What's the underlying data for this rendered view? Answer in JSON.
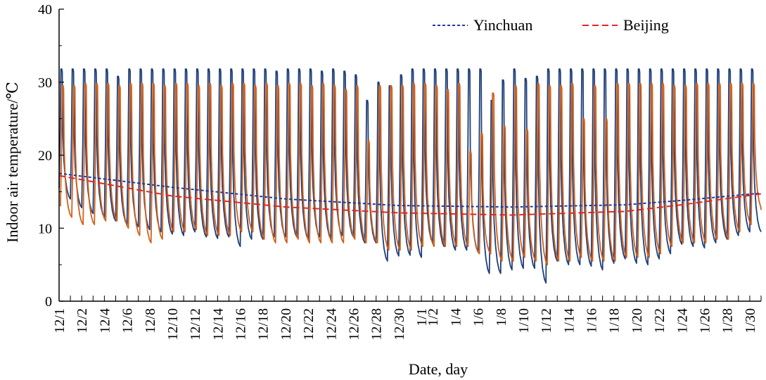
{
  "chart_data": {
    "type": "line",
    "xlabel": "Date, day",
    "ylabel": "Indoor air temperature/℃",
    "ylim": [
      0,
      40
    ],
    "yticks": [
      "0",
      "10",
      "20",
      "30",
      "40"
    ],
    "x_range_days": [
      0,
      62
    ],
    "x_tick_labels": [
      "12/1",
      "12/2",
      "12/4",
      "12/6",
      "12/8",
      "12/10",
      "12/12",
      "12/14",
      "12/16",
      "12/18",
      "12/20",
      "12/22",
      "12/24",
      "12/26",
      "12/28",
      "12/30",
      "1/1",
      "1/2",
      "1/4",
      "1/6",
      "1/8",
      "1/10",
      "1/12",
      "1/14",
      "1/16",
      "1/18",
      "1/20",
      "1/22",
      "1/24",
      "1/26",
      "1/28",
      "1/30"
    ],
    "x_tick_positions": [
      0,
      2,
      4,
      6,
      8,
      10,
      12,
      14,
      16,
      18,
      20,
      22,
      24,
      26,
      28,
      30,
      32,
      33,
      35,
      37,
      39,
      41,
      43,
      45,
      47,
      49,
      51,
      53,
      55,
      57,
      59,
      61
    ],
    "grid": false,
    "legend_position": "top-right",
    "colors": {
      "yinchuan_measured": "#1f3f7a",
      "beijing_measured": "#d2611c",
      "yinchuan_trend": "#1f3a9e",
      "beijing_trend": "#e8231f"
    },
    "series": [
      {
        "name": "Yinchuan",
        "role": "trend",
        "style": "dashed",
        "x": [
          0,
          10,
          20,
          30,
          40,
          50,
          55,
          62
        ],
        "values": [
          17.5,
          15.6,
          14.0,
          13.1,
          12.9,
          13.2,
          13.8,
          14.8
        ]
      },
      {
        "name": "Beijing",
        "role": "trend",
        "style": "dashed",
        "x": [
          0,
          10,
          20,
          30,
          40,
          50,
          55,
          62
        ],
        "values": [
          17.2,
          14.4,
          12.9,
          12.1,
          11.8,
          12.3,
          13.2,
          14.7
        ]
      },
      {
        "role": "measured",
        "city": "Yinchuan",
        "daily_peak": [
          31.8,
          31.8,
          31.8,
          31.8,
          31.8,
          30.8,
          31.8,
          31.8,
          31.8,
          31.8,
          31.8,
          31.8,
          31.8,
          31.8,
          31.8,
          31.8,
          31.8,
          31.8,
          31.8,
          31.5,
          31.8,
          31.8,
          31.8,
          31.5,
          31.8,
          31.5,
          31.0,
          27.5,
          30.0,
          29.5,
          31.0,
          31.8,
          31.8,
          31.8,
          31.8,
          31.8,
          31.8,
          31.8,
          27.5,
          30.3,
          31.8,
          30.5,
          30.8,
          31.8,
          31.8,
          31.8,
          31.8,
          31.8,
          31.8,
          31.8,
          31.8,
          31.8,
          31.8,
          31.8,
          31.8,
          31.8,
          31.8,
          31.8,
          31.8,
          31.8,
          31.8,
          31.8
        ],
        "daily_min": [
          14.0,
          12.8,
          12.0,
          11.5,
          11.0,
          10.5,
          10.2,
          9.8,
          9.5,
          9.2,
          9.0,
          9.5,
          8.8,
          8.6,
          8.8,
          7.5,
          8.5,
          8.5,
          8.8,
          8.8,
          8.8,
          8.5,
          8.8,
          8.5,
          9.0,
          8.8,
          8.0,
          8.0,
          5.5,
          6.2,
          6.3,
          6.0,
          8.0,
          7.5,
          7.0,
          7.0,
          6.8,
          3.8,
          3.8,
          4.3,
          4.5,
          4.5,
          2.5,
          5.5,
          5.0,
          5.0,
          4.8,
          4.3,
          5.2,
          5.8,
          5.2,
          5.0,
          5.8,
          6.5,
          7.8,
          7.5,
          7.3,
          8.0,
          8.5,
          9.0,
          9.5,
          9.5
        ]
      },
      {
        "role": "measured",
        "city": "Beijing",
        "daily_peak": [
          29.5,
          29.5,
          29.8,
          29.8,
          29.8,
          29.5,
          29.8,
          29.8,
          29.8,
          29.5,
          29.8,
          29.8,
          29.5,
          29.8,
          29.5,
          29.8,
          29.8,
          29.5,
          29.8,
          29.5,
          29.8,
          29.8,
          29.5,
          29.8,
          29.5,
          29.0,
          29.5,
          22.0,
          29.5,
          29.5,
          29.5,
          29.8,
          29.8,
          29.5,
          29.0,
          29.8,
          20.5,
          23.0,
          28.5,
          24.0,
          29.5,
          23.5,
          29.8,
          29.5,
          29.5,
          29.8,
          25.0,
          29.5,
          25.0,
          29.8,
          29.8,
          29.8,
          29.8,
          29.8,
          29.5,
          29.5,
          29.8,
          29.8,
          29.8,
          29.8,
          29.8,
          29.8
        ],
        "daily_min": [
          11.5,
          10.5,
          10.5,
          11.0,
          11.0,
          10.0,
          9.0,
          8.0,
          8.5,
          9.5,
          9.5,
          9.8,
          9.0,
          9.0,
          9.0,
          9.5,
          9.5,
          8.5,
          8.0,
          8.0,
          8.5,
          8.0,
          8.0,
          8.0,
          8.0,
          8.5,
          8.0,
          8.0,
          7.0,
          7.0,
          7.0,
          7.5,
          7.5,
          7.5,
          7.5,
          7.5,
          6.5,
          6.5,
          5.5,
          5.5,
          6.0,
          5.5,
          5.0,
          5.5,
          5.5,
          6.0,
          5.5,
          5.5,
          5.5,
          6.0,
          6.0,
          6.0,
          6.5,
          7.5,
          8.0,
          8.0,
          8.0,
          8.5,
          8.5,
          9.5,
          10.5,
          12.5
        ]
      }
    ]
  }
}
